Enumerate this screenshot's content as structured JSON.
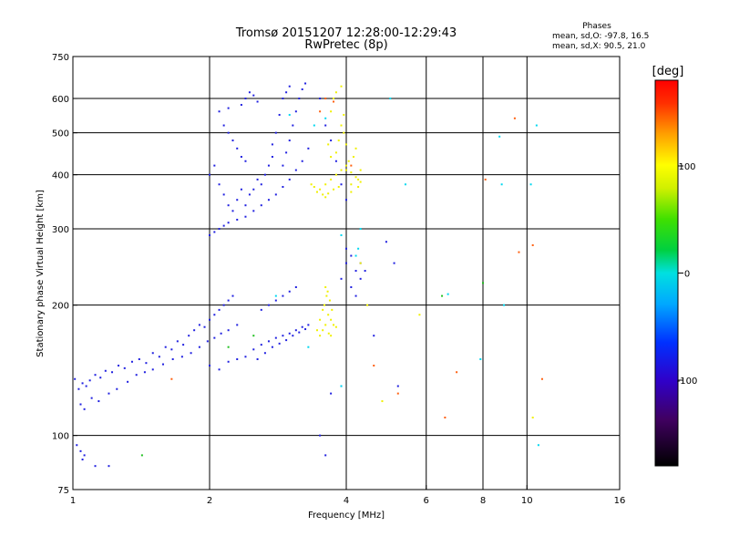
{
  "chart_data": {
    "type": "scatter",
    "title": "Tromsø 20151207 12:28:00-12:29:43",
    "subtitle": "RwPretec (8p)",
    "stats": {
      "title": "Phases",
      "line1": "mean, sd,O: -97.8, 16.5",
      "line2": "mean, sd,X:  90.5, 21.0"
    },
    "xlabel": "Frequency [MHz]",
    "ylabel": "Stationary phase Virtual Height [km]",
    "xscale": "log",
    "yscale": "log",
    "xlim": [
      1,
      16
    ],
    "ylim": [
      75,
      750
    ],
    "xticks": [
      1,
      2,
      4,
      6,
      8,
      10,
      16
    ],
    "yticks": [
      75,
      100,
      200,
      300,
      400,
      500,
      600,
      750
    ],
    "xgrid": [
      2,
      4,
      6,
      8,
      10
    ],
    "ygrid": [
      100,
      200,
      300,
      400,
      500,
      600
    ],
    "grid": true,
    "colorbar": {
      "label": "[deg]",
      "range": [
        -180,
        180
      ],
      "ticks": [
        100,
        0,
        -100
      ]
    },
    "series": [
      {
        "color_value": -100,
        "description_color": "#2020e0",
        "points": [
          [
            1.01,
            135
          ],
          [
            1.03,
            128
          ],
          [
            1.05,
            132
          ],
          [
            1.07,
            130
          ],
          [
            1.09,
            134
          ],
          [
            1.12,
            138
          ],
          [
            1.15,
            136
          ],
          [
            1.18,
            141
          ],
          [
            1.22,
            140
          ],
          [
            1.26,
            145
          ],
          [
            1.3,
            143
          ],
          [
            1.35,
            148
          ],
          [
            1.4,
            150
          ],
          [
            1.45,
            147
          ],
          [
            1.5,
            155
          ],
          [
            1.55,
            152
          ],
          [
            1.6,
            160
          ],
          [
            1.65,
            158
          ],
          [
            1.7,
            165
          ],
          [
            1.75,
            162
          ],
          [
            1.8,
            170
          ],
          [
            1.85,
            175
          ],
          [
            1.9,
            180
          ],
          [
            1.95,
            178
          ],
          [
            2.0,
            185
          ],
          [
            2.05,
            190
          ],
          [
            2.1,
            195
          ],
          [
            2.15,
            200
          ],
          [
            2.2,
            205
          ],
          [
            2.25,
            210
          ],
          [
            1.04,
            118
          ],
          [
            1.06,
            115
          ],
          [
            1.1,
            122
          ],
          [
            1.14,
            120
          ],
          [
            1.2,
            125
          ],
          [
            1.25,
            128
          ],
          [
            1.32,
            133
          ],
          [
            1.38,
            138
          ],
          [
            1.44,
            140
          ],
          [
            1.5,
            142
          ],
          [
            1.58,
            146
          ],
          [
            1.66,
            150
          ],
          [
            1.74,
            152
          ],
          [
            1.82,
            155
          ],
          [
            1.9,
            160
          ],
          [
            1.98,
            165
          ],
          [
            2.05,
            168
          ],
          [
            2.12,
            172
          ],
          [
            2.2,
            175
          ],
          [
            2.3,
            180
          ],
          [
            1.02,
            95
          ],
          [
            1.04,
            92
          ],
          [
            1.06,
            90
          ],
          [
            1.05,
            88
          ],
          [
            1.12,
            85
          ],
          [
            1.2,
            85
          ],
          [
            2.0,
            145
          ],
          [
            2.1,
            142
          ],
          [
            2.2,
            148
          ],
          [
            2.3,
            150
          ],
          [
            2.4,
            152
          ],
          [
            2.5,
            158
          ],
          [
            2.6,
            162
          ],
          [
            2.7,
            165
          ],
          [
            2.8,
            168
          ],
          [
            2.9,
            170
          ],
          [
            3.0,
            172
          ],
          [
            3.1,
            175
          ],
          [
            3.2,
            178
          ],
          [
            3.3,
            180
          ],
          [
            2.6,
            195
          ],
          [
            2.7,
            200
          ],
          [
            2.8,
            205
          ],
          [
            2.9,
            210
          ],
          [
            3.0,
            215
          ],
          [
            3.1,
            220
          ],
          [
            2.55,
            150
          ],
          [
            2.65,
            155
          ],
          [
            2.75,
            160
          ],
          [
            2.85,
            163
          ],
          [
            2.95,
            166
          ],
          [
            3.05,
            170
          ],
          [
            3.15,
            173
          ],
          [
            3.25,
            176
          ],
          [
            2.0,
            290
          ],
          [
            2.05,
            295
          ],
          [
            2.1,
            300
          ],
          [
            2.15,
            305
          ],
          [
            2.2,
            310
          ],
          [
            2.3,
            315
          ],
          [
            2.4,
            320
          ],
          [
            2.5,
            330
          ],
          [
            2.6,
            340
          ],
          [
            2.7,
            350
          ],
          [
            2.8,
            360
          ],
          [
            2.9,
            375
          ],
          [
            3.0,
            390
          ],
          [
            3.1,
            410
          ],
          [
            3.2,
            430
          ],
          [
            3.3,
            460
          ],
          [
            2.9,
            420
          ],
          [
            2.95,
            450
          ],
          [
            3.0,
            480
          ],
          [
            3.05,
            520
          ],
          [
            3.1,
            560
          ],
          [
            3.15,
            600
          ],
          [
            3.2,
            630
          ],
          [
            3.25,
            650
          ],
          [
            2.9,
            600
          ],
          [
            2.95,
            620
          ],
          [
            3.0,
            640
          ],
          [
            2.85,
            550
          ],
          [
            2.8,
            500
          ],
          [
            2.75,
            470
          ],
          [
            2.0,
            400
          ],
          [
            2.05,
            420
          ],
          [
            2.1,
            380
          ],
          [
            2.15,
            360
          ],
          [
            2.2,
            340
          ],
          [
            2.25,
            330
          ],
          [
            2.3,
            350
          ],
          [
            2.35,
            370
          ],
          [
            2.4,
            340
          ],
          [
            2.45,
            360
          ],
          [
            2.5,
            370
          ],
          [
            2.55,
            390
          ],
          [
            2.6,
            380
          ],
          [
            2.65,
            400
          ],
          [
            2.7,
            420
          ],
          [
            2.75,
            440
          ],
          [
            2.4,
            600
          ],
          [
            2.45,
            620
          ],
          [
            2.5,
            610
          ],
          [
            2.55,
            590
          ],
          [
            2.35,
            580
          ],
          [
            2.2,
            570
          ],
          [
            2.1,
            560
          ],
          [
            2.15,
            520
          ],
          [
            2.2,
            500
          ],
          [
            2.25,
            480
          ],
          [
            2.3,
            460
          ],
          [
            2.35,
            440
          ],
          [
            2.4,
            430
          ],
          [
            3.5,
            600
          ],
          [
            3.6,
            520
          ],
          [
            3.7,
            480
          ],
          [
            3.8,
            430
          ],
          [
            3.9,
            380
          ],
          [
            4.0,
            350
          ],
          [
            4.1,
            260
          ],
          [
            4.2,
            240
          ],
          [
            4.3,
            230
          ],
          [
            4.0,
            250
          ],
          [
            4.1,
            220
          ],
          [
            4.2,
            210
          ],
          [
            4.3,
            250
          ],
          [
            4.4,
            240
          ],
          [
            3.9,
            230
          ],
          [
            4.0,
            270
          ],
          [
            4.9,
            280
          ],
          [
            5.1,
            250
          ],
          [
            4.6,
            170
          ],
          [
            5.2,
            130
          ],
          [
            3.9,
            130
          ],
          [
            3.7,
            125
          ],
          [
            3.5,
            100
          ],
          [
            3.6,
            90
          ]
        ]
      },
      {
        "color_value": 100,
        "description_color": "#f0f000",
        "points": [
          [
            3.5,
            170
          ],
          [
            3.55,
            175
          ],
          [
            3.6,
            180
          ],
          [
            3.65,
            190
          ],
          [
            3.7,
            185
          ],
          [
            3.75,
            180
          ],
          [
            3.8,
            178
          ],
          [
            3.58,
            200
          ],
          [
            3.62,
            210
          ],
          [
            3.68,
            205
          ],
          [
            3.72,
            195
          ],
          [
            3.6,
            220
          ],
          [
            3.64,
            215
          ],
          [
            3.45,
            175
          ],
          [
            3.5,
            185
          ],
          [
            3.55,
            195
          ],
          [
            3.66,
            172
          ],
          [
            3.7,
            170
          ],
          [
            3.5,
            370
          ],
          [
            3.6,
            380
          ],
          [
            3.7,
            390
          ],
          [
            3.8,
            400
          ],
          [
            3.9,
            410
          ],
          [
            4.0,
            420
          ],
          [
            4.1,
            405
          ],
          [
            4.2,
            395
          ],
          [
            4.25,
            390
          ],
          [
            4.3,
            410
          ],
          [
            3.8,
            450
          ],
          [
            3.85,
            480
          ],
          [
            3.9,
            520
          ],
          [
            3.95,
            550
          ],
          [
            3.7,
            560
          ],
          [
            3.75,
            600
          ],
          [
            3.8,
            620
          ],
          [
            3.9,
            640
          ],
          [
            3.65,
            470
          ],
          [
            3.7,
            440
          ],
          [
            4.05,
            430
          ],
          [
            4.15,
            440
          ],
          [
            4.2,
            460
          ],
          [
            4.0,
            470
          ],
          [
            3.95,
            500
          ],
          [
            4.1,
            380
          ],
          [
            4.3,
            385
          ],
          [
            4.25,
            375
          ],
          [
            3.55,
            360
          ],
          [
            3.45,
            365
          ],
          [
            3.4,
            375
          ],
          [
            3.35,
            380
          ],
          [
            3.6,
            355
          ],
          [
            3.65,
            362
          ],
          [
            3.75,
            370
          ],
          [
            3.85,
            375
          ],
          [
            4.8,
            120
          ],
          [
            4.3,
            250
          ],
          [
            4.45,
            200
          ],
          [
            10.3,
            110
          ],
          [
            5.8,
            190
          ],
          [
            4.0,
            410
          ],
          [
            4.1,
            365
          ]
        ]
      },
      {
        "color_value": 30,
        "description_color": "#00d8f0",
        "points": [
          [
            3.9,
            130
          ],
          [
            4.2,
            260
          ],
          [
            4.25,
            270
          ],
          [
            3.3,
            160
          ],
          [
            2.8,
            210
          ],
          [
            3.0,
            550
          ],
          [
            3.6,
            540
          ],
          [
            3.4,
            520
          ],
          [
            3.9,
            290
          ],
          [
            4.3,
            300
          ],
          [
            5.0,
            600
          ],
          [
            5.4,
            380
          ],
          [
            8.7,
            490
          ],
          [
            10.5,
            520
          ],
          [
            10.6,
            95
          ],
          [
            8.8,
            380
          ],
          [
            6.7,
            212
          ],
          [
            7.9,
            150
          ],
          [
            8.9,
            200
          ],
          [
            10.2,
            380
          ]
        ]
      },
      {
        "color_value": 150,
        "description_color": "#ff6010",
        "points": [
          [
            3.5,
            560
          ],
          [
            3.6,
            600
          ],
          [
            3.75,
            590
          ],
          [
            4.1,
            420
          ],
          [
            4.6,
            145
          ],
          [
            5.2,
            125
          ],
          [
            6.6,
            110
          ],
          [
            8.1,
            390
          ],
          [
            9.4,
            540
          ],
          [
            10.3,
            275
          ],
          [
            9.6,
            265
          ],
          [
            1.65,
            135
          ],
          [
            7.0,
            140
          ],
          [
            10.8,
            135
          ]
        ]
      },
      {
        "color_value": 0,
        "description_color": "#20c020",
        "points": [
          [
            6.5,
            210
          ],
          [
            1.42,
            90
          ],
          [
            2.2,
            160
          ],
          [
            2.5,
            170
          ],
          [
            8.0,
            225
          ]
        ]
      }
    ]
  }
}
